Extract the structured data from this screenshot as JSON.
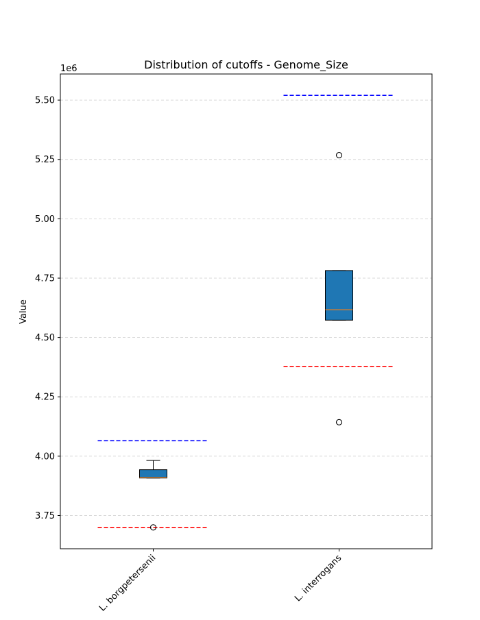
{
  "chart_data": {
    "type": "box",
    "title": "Distribution of cutoffs - Genome_Size",
    "xlabel": "",
    "ylabel": "Value",
    "y_offset_label": "1e6",
    "ylim": [
      3.61,
      5.61
    ],
    "y_scale": 1000000,
    "yticks": [
      3.75,
      4.0,
      4.25,
      4.5,
      4.75,
      5.0,
      5.25,
      5.5
    ],
    "ytick_labels": [
      "3.75",
      "4.00",
      "4.25",
      "4.50",
      "4.75",
      "5.00",
      "5.25",
      "5.50"
    ],
    "grid": "y-dashed",
    "categories": [
      "L. borgpetersenii",
      "L. interrogans"
    ],
    "boxes": [
      {
        "category": "L. borgpetersenii",
        "q1": 3.908,
        "median": 3.91,
        "q3": 3.943,
        "whisker_low": 3.908,
        "whisker_high": 3.982,
        "outliers": [
          3.7
        ],
        "upper_cutoff": 4.065,
        "lower_cutoff": 3.7
      },
      {
        "category": "L. interrogans",
        "q1": 4.573,
        "median": 4.617,
        "q3": 4.782,
        "whisker_low": 4.573,
        "whisker_high": 4.782,
        "outliers": [
          5.268,
          4.143
        ],
        "upper_cutoff": 5.52,
        "lower_cutoff": 4.378
      }
    ],
    "colors": {
      "box_fill": "#1f77b4",
      "median": "#ff7f0e",
      "upper_cutoff": "#0000ff",
      "lower_cutoff": "#ff0000",
      "grid": "#cccccc"
    }
  }
}
